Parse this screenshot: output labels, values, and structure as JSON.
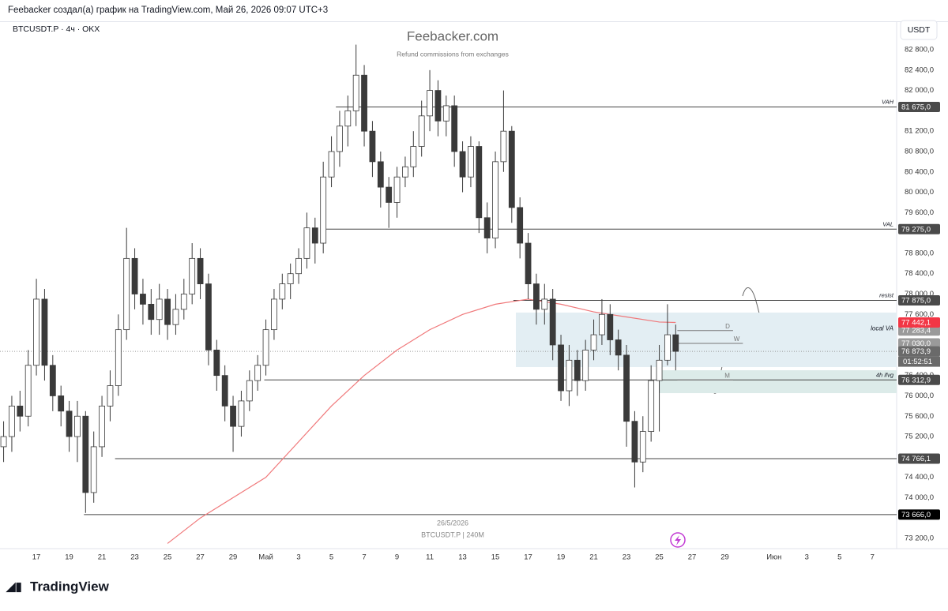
{
  "header": {
    "caption": "Feebacker создал(а) график на TradingView.com, Май 26, 2026 09:07 UTC+3",
    "symbol": "BTCUSDT.P · 4ч · OKX",
    "currency": "USDT",
    "watermark": "Feebacker.com",
    "watermark_sub": "Refund commissions from exchanges",
    "date_stamp": "26/5/2026",
    "stamp_symbol": "BTCUSDT.P | 240M",
    "brand": "TradingView",
    "countdown": "01:52:51"
  },
  "chart_data": {
    "type": "candlestick",
    "x": [
      15,
      15.5,
      16,
      16.5,
      17,
      17.5,
      18,
      18.5,
      19,
      19.5,
      20,
      20.5,
      21,
      21.5,
      22,
      22.5,
      23,
      23.5,
      24,
      24.5,
      25,
      25.5,
      26,
      26.5,
      27,
      27.5,
      28,
      28.5,
      29,
      29.5,
      30,
      30.5,
      31,
      31.5,
      32,
      32.5,
      33,
      33.5,
      34,
      34.5,
      35,
      35.5,
      36,
      36.5,
      37,
      37.5,
      38,
      38.5,
      39,
      39.5,
      40,
      40.5,
      41,
      41.5,
      42,
      42.5,
      43,
      43.5,
      44,
      44.5,
      45,
      45.5,
      46,
      46.5,
      47,
      47.5,
      48,
      48.5,
      49,
      49.5,
      50,
      50.5,
      51,
      51.5,
      52,
      52.5,
      53,
      53.5,
      54,
      54.5,
      55,
      55.5,
      56
    ],
    "open": [
      75000,
      75200,
      75800,
      75600,
      76600,
      77900,
      76600,
      76000,
      75700,
      75200,
      75600,
      74100,
      75000,
      75800,
      76200,
      77300,
      78700,
      78000,
      77800,
      77500,
      77900,
      77400,
      77700,
      78000,
      78700,
      78200,
      76900,
      76400,
      75800,
      75400,
      75900,
      76300,
      76600,
      77300,
      77900,
      78200,
      78400,
      78700,
      79300,
      79000,
      80300,
      80800,
      81300,
      81600,
      82300,
      81200,
      80600,
      80100,
      79800,
      80300,
      80500,
      80900,
      81500,
      82000,
      81400,
      81700,
      80800,
      80300,
      80900,
      79500,
      79100,
      80600,
      81200,
      79700,
      79000,
      78200,
      77700,
      77900,
      77000,
      76100,
      76700,
      76300,
      76900,
      77200,
      77600,
      77100,
      76800,
      75500,
      74700,
      75300,
      76300,
      76700,
      77200
    ],
    "high": [
      75500,
      76000,
      76100,
      76900,
      78300,
      78100,
      76800,
      76200,
      75900,
      75900,
      75700,
      75300,
      76000,
      76500,
      77600,
      79300,
      78900,
      78300,
      78100,
      78200,
      78100,
      78000,
      78300,
      79000,
      78900,
      78400,
      77100,
      76600,
      76000,
      76100,
      76500,
      76800,
      77500,
      78100,
      78400,
      78600,
      78900,
      79600,
      79500,
      80600,
      81100,
      81600,
      81900,
      82900,
      82500,
      81400,
      80800,
      80300,
      80500,
      80700,
      81200,
      81800,
      82400,
      82200,
      81900,
      81900,
      81000,
      81100,
      81000,
      79800,
      80800,
      82000,
      81300,
      79900,
      79200,
      78400,
      78200,
      78100,
      77200,
      77000,
      76900,
      77100,
      77500,
      77900,
      77800,
      77300,
      77000,
      75700,
      75600,
      76600,
      77000,
      77800,
      77400
    ],
    "low": [
      74700,
      74900,
      75300,
      75400,
      76400,
      76300,
      75700,
      75400,
      74900,
      74700,
      73700,
      73900,
      74800,
      75500,
      76000,
      77100,
      77700,
      77400,
      77200,
      77200,
      77100,
      77200,
      77500,
      77800,
      77900,
      76600,
      76100,
      75500,
      74900,
      75200,
      75700,
      76100,
      76400,
      77100,
      77700,
      77900,
      78200,
      78500,
      78600,
      78800,
      80100,
      80500,
      80900,
      81300,
      80900,
      80300,
      79700,
      79300,
      79500,
      80100,
      80300,
      80700,
      81200,
      81100,
      81100,
      80500,
      80000,
      80100,
      79200,
      78800,
      78900,
      80400,
      79400,
      78700,
      77900,
      77400,
      77400,
      76700,
      75900,
      75800,
      76000,
      76100,
      76700,
      77000,
      76800,
      76500,
      75000,
      74200,
      74500,
      75100,
      75300,
      76600,
      76500
    ],
    "close": [
      75200,
      75800,
      75600,
      76600,
      77900,
      76600,
      76000,
      75700,
      75200,
      75600,
      74100,
      75000,
      75800,
      76200,
      77300,
      78700,
      78000,
      77800,
      77500,
      77900,
      77400,
      77700,
      78000,
      78700,
      78200,
      76900,
      76400,
      75800,
      75400,
      75900,
      76300,
      76600,
      77300,
      77900,
      78200,
      78400,
      78700,
      79300,
      79000,
      80300,
      80800,
      81300,
      81600,
      82300,
      81200,
      80600,
      80100,
      79800,
      80300,
      80500,
      80900,
      81500,
      82000,
      81400,
      81700,
      80800,
      80300,
      80900,
      79500,
      79100,
      80600,
      81200,
      79700,
      79000,
      78200,
      77700,
      77900,
      77000,
      76100,
      76700,
      76300,
      76900,
      77200,
      77600,
      77100,
      76800,
      75500,
      74700,
      75300,
      76300,
      76700,
      77200,
      76873.9
    ],
    "up_color": "#ffffff",
    "down_color": "#3a3a3a",
    "wick_color": "#3a3a3a",
    "ma": {
      "color": "#f0787a",
      "x": [
        25,
        27,
        29,
        31,
        33,
        35,
        37,
        39,
        41,
        43,
        45,
        47,
        49,
        51,
        53,
        55,
        56
      ],
      "values": [
        73100,
        73600,
        74000,
        74400,
        75100,
        75800,
        76400,
        76900,
        77300,
        77600,
        77800,
        77900,
        77800,
        77650,
        77550,
        77450,
        77442.1
      ]
    },
    "xlim": [
      14.78,
      69.48
    ],
    "ylim": [
      72998,
      83343
    ],
    "xticks": [
      17,
      19,
      21,
      23,
      25,
      27,
      29,
      {
        "value": 31,
        "label": "Май"
      },
      {
        "value": 33,
        "label": "3"
      },
      {
        "value": 35,
        "label": "5"
      },
      {
        "value": 37,
        "label": "7"
      },
      {
        "value": 39,
        "label": "9"
      },
      {
        "value": 41,
        "label": "11"
      },
      {
        "value": 43,
        "label": "13"
      },
      {
        "value": 45,
        "label": "15"
      },
      {
        "value": 47,
        "label": "17"
      },
      {
        "value": 49,
        "label": "19"
      },
      {
        "value": 51,
        "label": "21"
      },
      {
        "value": 53,
        "label": "23"
      },
      {
        "value": 55,
        "label": "25"
      },
      {
        "value": 57,
        "label": "27"
      },
      {
        "value": 59,
        "label": "29"
      },
      {
        "value": 62,
        "label": "Июн"
      },
      {
        "value": 64,
        "label": "3"
      },
      {
        "value": 66,
        "label": "5"
      },
      {
        "value": 68,
        "label": "7"
      }
    ],
    "yticks": [
      {
        "value": 82800,
        "label": "82 800,0"
      },
      {
        "value": 82400,
        "label": "82 400,0"
      },
      {
        "value": 82000,
        "label": "82 000,0"
      },
      {
        "value": 81200,
        "label": "81 200,0"
      },
      {
        "value": 80800,
        "label": "80 800,0"
      },
      {
        "value": 80400,
        "label": "80 400,0"
      },
      {
        "value": 80000,
        "label": "80 000,0"
      },
      {
        "value": 79600,
        "label": "79 600,0"
      },
      {
        "value": 78800,
        "label": "78 800,0"
      },
      {
        "value": 78400,
        "label": "78 400,0"
      },
      {
        "value": 78000,
        "label": "78 000,0"
      },
      {
        "value": 77600,
        "label": "77 600,0"
      },
      {
        "value": 76400,
        "label": "76 400,0"
      },
      {
        "value": 76000,
        "label": "76 000,0"
      },
      {
        "value": 75600,
        "label": "75 600,0"
      },
      {
        "value": 75200,
        "label": "75 200,0"
      },
      {
        "value": 74400,
        "label": "74 400,0"
      },
      {
        "value": 74000,
        "label": "74 000,0"
      },
      {
        "value": 73200,
        "label": "73 200,0"
      }
    ],
    "levels": [
      {
        "label": "VAH",
        "value": 81675,
        "value_label": "81 675,0",
        "x_start": 35.27,
        "label_color": "#4a4a4a"
      },
      {
        "label": "VAL",
        "value": 79275,
        "value_label": "79 275,0",
        "x_start": 34.5,
        "label_color": "#4a4a4a"
      },
      {
        "label": "resist",
        "value": 77875,
        "value_label": "77 875,0",
        "x_start": 46.1,
        "label_color": "#4a4a4a"
      },
      {
        "label": "4h ifvg",
        "value": 76312.9,
        "value_label": "76 312,9",
        "x_start": 30.9,
        "label_color": "#4a4a4a"
      },
      {
        "value": 74766.1,
        "value_label": "74 766,1",
        "x_start": 21.8,
        "label_color": "#4a4a4a"
      },
      {
        "value": 73666,
        "value_label": "73 666,0",
        "x_start": 19.9,
        "label_color": "#000000"
      }
    ],
    "zones": [
      {
        "label": "local VA",
        "from": 76565,
        "to": 77636,
        "x_start": 46.25,
        "color": "#e3eef3"
      },
      {
        "from": 76053,
        "to": 76503,
        "x_start": 55.0,
        "color": "#dcebe9"
      }
    ],
    "markers": [
      {
        "label": "D",
        "value": 77283.4,
        "value_label": "77 283,4",
        "x_start": 56.1,
        "x_end": 59.5
      },
      {
        "label": "W",
        "value": 77030,
        "value_label": "77 030,0",
        "x_start": 56.1,
        "x_end": 60.1
      },
      {
        "label": "M",
        "value": 76312.9,
        "x_start": 56.1,
        "x_end": 59.5
      }
    ],
    "ma_label": {
      "value": 77442.1,
      "value_label": "77 442,1",
      "color": "#f23645"
    },
    "last_price": {
      "value": 76873.9,
      "value_label": "76 873,9",
      "color": "#6a6a6a"
    }
  }
}
